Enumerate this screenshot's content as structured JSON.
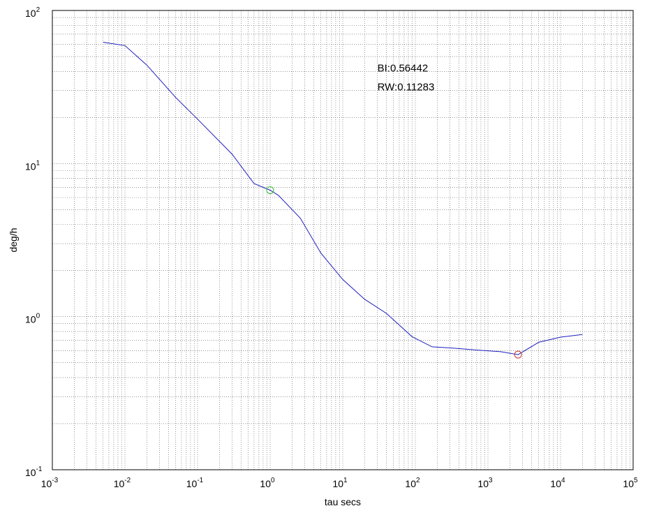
{
  "chart_data": {
    "type": "line",
    "xscale": "log",
    "yscale": "log",
    "xlim": [
      0.001,
      100000
    ],
    "ylim": [
      0.1,
      100
    ],
    "xlabel": "tau secs",
    "ylabel": "deg/h",
    "grid": true,
    "x_ticks": [
      {
        "base": "10",
        "exp": "-3"
      },
      {
        "base": "10",
        "exp": "-2"
      },
      {
        "base": "10",
        "exp": "-1"
      },
      {
        "base": "10",
        "exp": "0"
      },
      {
        "base": "10",
        "exp": "1"
      },
      {
        "base": "10",
        "exp": "2"
      },
      {
        "base": "10",
        "exp": "3"
      },
      {
        "base": "10",
        "exp": "4"
      },
      {
        "base": "10",
        "exp": "5"
      }
    ],
    "y_ticks": [
      {
        "base": "10",
        "exp": "-1"
      },
      {
        "base": "10",
        "exp": "0"
      },
      {
        "base": "10",
        "exp": "1"
      },
      {
        "base": "10",
        "exp": "2"
      }
    ],
    "series": [
      {
        "color": "#1f1fbf",
        "points": [
          [
            0.005,
            62
          ],
          [
            0.01,
            59
          ],
          [
            0.02,
            44
          ],
          [
            0.05,
            27
          ],
          [
            0.1,
            19.5
          ],
          [
            0.3,
            11.5
          ],
          [
            0.6,
            7.4
          ],
          [
            1.0,
            6.7
          ],
          [
            1.3,
            6.2
          ],
          [
            2.6,
            4.4
          ],
          [
            5,
            2.6
          ],
          [
            10,
            1.75
          ],
          [
            20,
            1.3
          ],
          [
            40,
            1.05
          ],
          [
            90,
            0.74
          ],
          [
            170,
            0.635
          ],
          [
            300,
            0.625
          ],
          [
            700,
            0.605
          ],
          [
            1500,
            0.59
          ],
          [
            2600,
            0.565
          ],
          [
            5000,
            0.68
          ],
          [
            10000,
            0.735
          ],
          [
            20000,
            0.765
          ]
        ]
      }
    ],
    "markers": [
      {
        "x": 1.0,
        "y": 6.7,
        "color": "#33bb33"
      },
      {
        "x": 2600,
        "y": 0.565,
        "color": "#cc3333"
      }
    ],
    "annotations": [
      {
        "text": "BI:0.56442",
        "x": 30,
        "y": 40
      },
      {
        "text": "RW:0.11283",
        "x": 30,
        "y": 30
      }
    ]
  }
}
